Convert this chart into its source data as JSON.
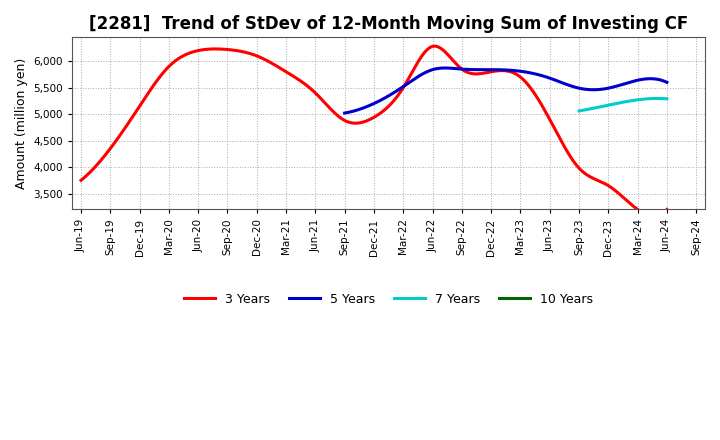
{
  "title": "[2281]  Trend of StDev of 12-Month Moving Sum of Investing CF",
  "ylabel": "Amount (million yen)",
  "ylim": [
    3200,
    6450
  ],
  "yticks": [
    3500,
    4000,
    4500,
    5000,
    5500,
    6000
  ],
  "background_color": "#ffffff",
  "grid_color": "#aaaaaa",
  "x_labels": [
    "Jun-19",
    "Sep-19",
    "Dec-19",
    "Mar-20",
    "Jun-20",
    "Sep-20",
    "Dec-20",
    "Mar-21",
    "Jun-21",
    "Sep-21",
    "Dec-21",
    "Mar-22",
    "Jun-22",
    "Sep-22",
    "Dec-22",
    "Mar-23",
    "Jun-23",
    "Sep-23",
    "Dec-23",
    "Mar-24",
    "Jun-24",
    "Sep-24"
  ],
  "series": {
    "3 Years": {
      "color": "#ff0000",
      "data_x": [
        0,
        1,
        2,
        3,
        4,
        5,
        6,
        7,
        8,
        9,
        10,
        11,
        12,
        13,
        14,
        15,
        16,
        17,
        18,
        19,
        20
      ],
      "data_y": [
        3750,
        4350,
        5150,
        5900,
        6200,
        6220,
        6100,
        5800,
        5400,
        4880,
        4940,
        5500,
        6280,
        5850,
        5800,
        5700,
        4900,
        3980,
        3650,
        3200,
        3200
      ]
    },
    "5 Years": {
      "color": "#0000cc",
      "data_x": [
        9,
        10,
        11,
        12,
        13,
        14,
        15,
        16,
        17,
        18,
        19,
        20
      ],
      "data_y": [
        5020,
        5200,
        5520,
        5840,
        5850,
        5840,
        5810,
        5680,
        5490,
        5490,
        5640,
        5600
      ]
    },
    "7 Years": {
      "color": "#00cccc",
      "data_x": [
        17,
        18,
        19,
        20
      ],
      "data_y": [
        5060,
        5170,
        5270,
        5290
      ]
    },
    "10 Years": {
      "color": "#006600",
      "data_x": [],
      "data_y": []
    }
  },
  "legend_order": [
    "3 Years",
    "5 Years",
    "7 Years",
    "10 Years"
  ],
  "title_fontsize": 12,
  "tick_fontsize": 7.5,
  "label_fontsize": 9,
  "line_width": 2.2
}
